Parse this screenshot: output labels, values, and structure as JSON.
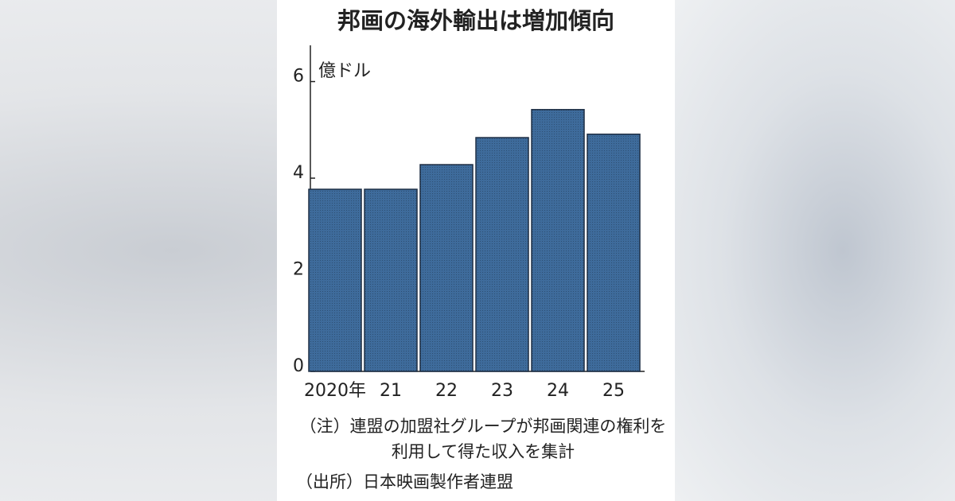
{
  "chart_data": {
    "type": "bar",
    "title": "邦画の海外輸出は増加傾向",
    "unit": "億ドル",
    "categories": [
      "2020年",
      "21",
      "22",
      "23",
      "24",
      "25"
    ],
    "values": [
      3.77,
      3.77,
      4.28,
      4.84,
      5.42,
      4.91
    ],
    "color": "#3e6b9b",
    "ylim": [
      0,
      6.75
    ],
    "yticks": [
      0,
      2,
      4,
      6
    ],
    "note": "（注）連盟の加盟社グループが邦画関連の権利を利用して得た収入を集計",
    "source": "（出所）日本映画製作者連盟"
  }
}
